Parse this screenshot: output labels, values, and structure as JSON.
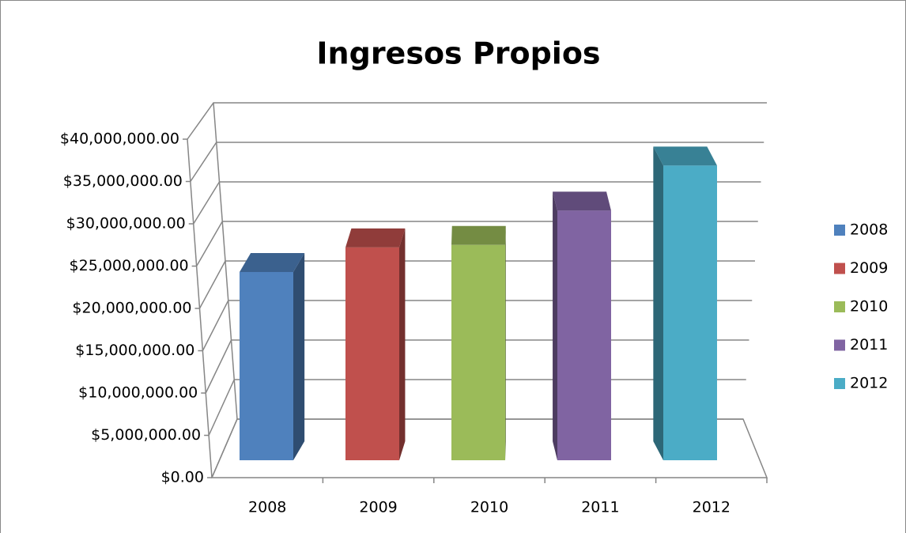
{
  "chart_data": {
    "type": "bar3d",
    "title": "Ingresos Propios",
    "categories": [
      "2008",
      "2009",
      "2010",
      "2011",
      "2012"
    ],
    "values": [
      23000000,
      26000000,
      26300000,
      30500000,
      36000000
    ],
    "colors": [
      "#4f81bd",
      "#c0504d",
      "#9bbb59",
      "#8064a2",
      "#4bacc6"
    ],
    "ylim": [
      0,
      40000000
    ],
    "yticks": [
      {
        "value": 0,
        "label": "$0.00"
      },
      {
        "value": 5000000,
        "label": "$5,000,000.00"
      },
      {
        "value": 10000000,
        "label": "$10,000,000.00"
      },
      {
        "value": 15000000,
        "label": "$15,000,000.00"
      },
      {
        "value": 20000000,
        "label": "$20,000,000.00"
      },
      {
        "value": 25000000,
        "label": "$25,000,000.00"
      },
      {
        "value": 30000000,
        "label": "$30,000,000.00"
      },
      {
        "value": 35000000,
        "label": "$35,000,000.00"
      },
      {
        "value": 40000000,
        "label": "$40,000,000.00"
      }
    ],
    "grid": true,
    "legend": "right"
  }
}
